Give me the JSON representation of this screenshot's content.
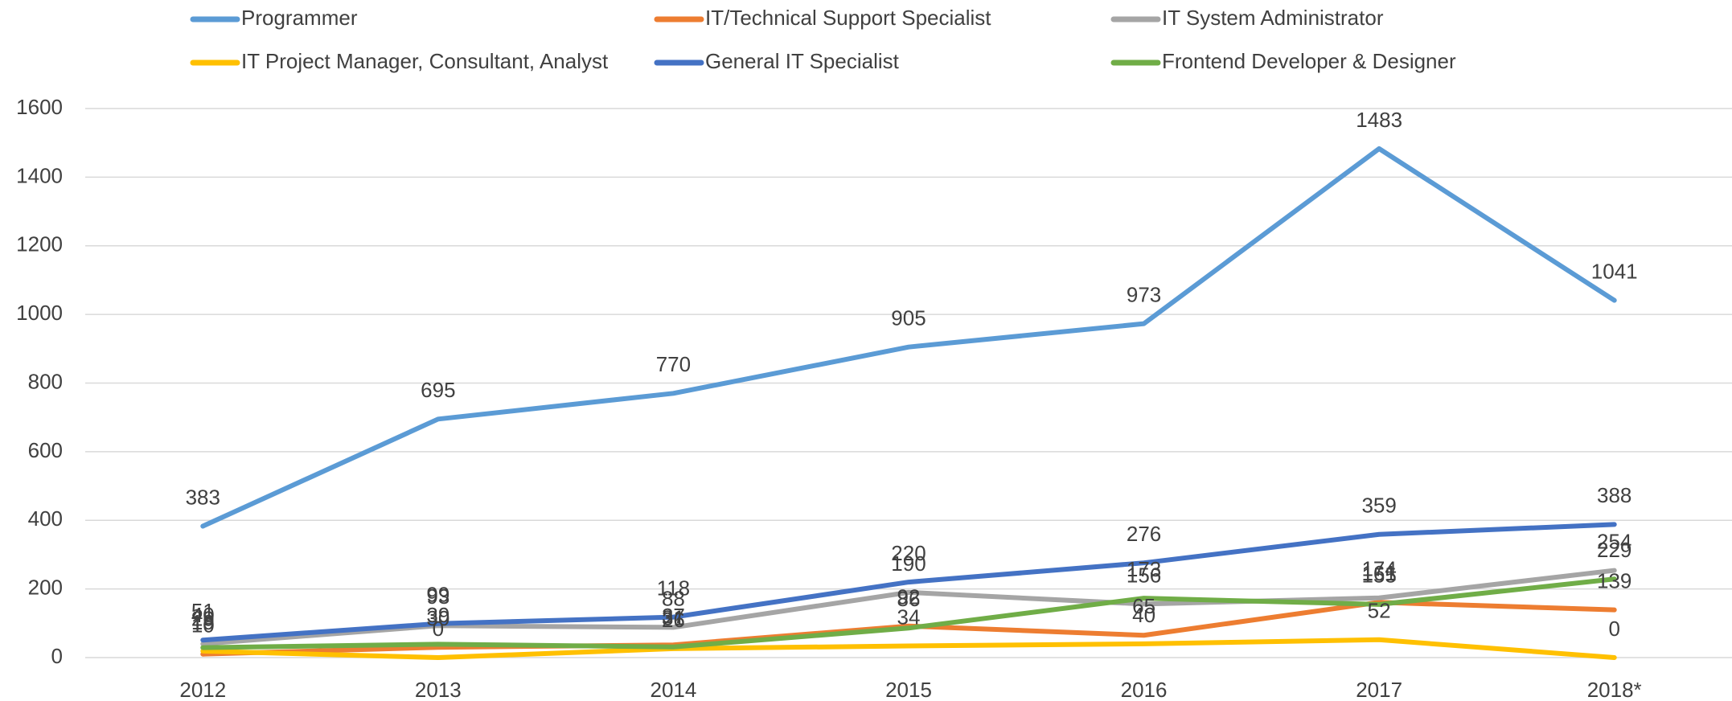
{
  "chart_data": {
    "type": "line",
    "categories": [
      "2012",
      "2013",
      "2014",
      "2015",
      "2016",
      "2017",
      "2018*"
    ],
    "series": [
      {
        "name": "Programmer",
        "color": "#5b9bd5",
        "values": [
          383,
          695,
          770,
          905,
          973,
          1483,
          1041
        ]
      },
      {
        "name": "IT/Technical Support Specialist",
        "color": "#ed7d31",
        "values": [
          10,
          30,
          37,
          92,
          65,
          161,
          139
        ]
      },
      {
        "name": "IT System Administrator",
        "color": "#a5a5a5",
        "values": [
          40,
          93,
          88,
          190,
          156,
          174,
          254
        ]
      },
      {
        "name": "IT Project Manager, Consultant, Analyst",
        "color": "#ffc000",
        "values": [
          19,
          0,
          26,
          34,
          40,
          52,
          0
        ]
      },
      {
        "name": "General IT Specialist",
        "color": "#4472c4",
        "values": [
          51,
          99,
          118,
          220,
          276,
          359,
          388
        ]
      },
      {
        "name": "Frontend Developer & Designer",
        "color": "#70ad47",
        "values": [
          29,
          39,
          31,
          86,
          173,
          155,
          229
        ]
      }
    ],
    "ylim": [
      0,
      1600
    ],
    "yticks": [
      0,
      200,
      400,
      600,
      800,
      1000,
      1200,
      1400,
      1600
    ],
    "grid": true,
    "legend": "top",
    "data_labels": true
  }
}
